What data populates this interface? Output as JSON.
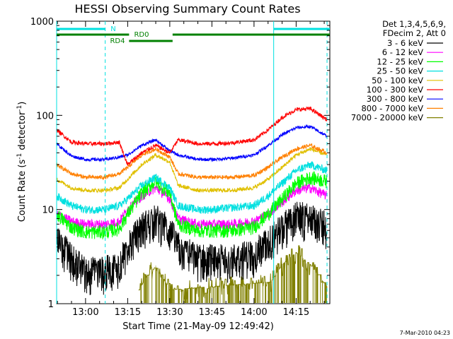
{
  "chart_data": {
    "type": "line",
    "title": "HESSI Observing Summary Count Rates",
    "xlabel": "Start Time (21-May-09 12:49:42)",
    "ylabel_main": "Count Rate (s",
    "ylabel_sup1": "-1",
    "ylabel_mid": " detector",
    "ylabel_sup2": "-1",
    "ylabel_end": ")",
    "y_scale": "log",
    "ylim": [
      1,
      1000
    ],
    "xlim": [
      "12:49:42",
      "14:27:00"
    ],
    "x_ticks": [
      "13:00",
      "13:15",
      "13:30",
      "13:45",
      "14:00",
      "14:15"
    ],
    "y_ticks": [
      "1",
      "10",
      "100",
      "1000"
    ],
    "grid": false,
    "legend_position": "right",
    "legend_header": [
      "Det 1,3,4,5,6,9,",
      "FDecim 2, Att 0"
    ],
    "footer_text": "7-Mar-2010 04:23",
    "flags": [
      {
        "label": "N",
        "color": "#00e0e0"
      },
      {
        "label": "RD0",
        "color": "#008000"
      },
      {
        "label": "RD4",
        "color": "#008000"
      }
    ],
    "night_boundaries": [
      "12:49:42",
      "13:07:00",
      "14:07:00",
      "14:26:00"
    ],
    "series": [
      {
        "name": "3 - 6 keV",
        "color": "#000000",
        "x": [
          "12:49:42",
          "12:55",
          "13:00",
          "13:07",
          "13:12",
          "13:15",
          "13:20",
          "13:25",
          "13:30",
          "13:33",
          "13:40",
          "13:45",
          "13:52",
          "14:00",
          "14:05",
          "14:10",
          "14:15",
          "14:20",
          "14:26"
        ],
        "values": [
          5,
          3,
          2.2,
          2.2,
          2.6,
          4,
          6.5,
          8,
          6,
          4,
          3,
          3,
          3,
          3.4,
          4.5,
          6.5,
          8.5,
          8,
          6.5
        ]
      },
      {
        "name": "6 - 12 keV",
        "color": "#ff00ff",
        "x": [
          "12:49:42",
          "12:55",
          "13:00",
          "13:07",
          "13:12",
          "13:15",
          "13:20",
          "13:25",
          "13:30",
          "13:33",
          "13:40",
          "13:45",
          "13:52",
          "14:00",
          "14:05",
          "14:10",
          "14:15",
          "14:20",
          "14:26"
        ],
        "values": [
          9,
          7.5,
          7,
          7,
          7.5,
          10,
          14,
          17,
          13,
          8,
          7,
          7,
          7,
          7.5,
          9,
          12,
          16,
          17,
          14
        ]
      },
      {
        "name": "12 - 25 keV",
        "color": "#00ff00",
        "x": [
          "12:49:42",
          "12:55",
          "13:00",
          "13:07",
          "13:12",
          "13:15",
          "13:20",
          "13:25",
          "13:30",
          "13:33",
          "13:40",
          "13:45",
          "13:52",
          "14:00",
          "14:05",
          "14:10",
          "14:15",
          "14:20",
          "14:26"
        ],
        "values": [
          9,
          6.5,
          5.8,
          5.8,
          6.3,
          9,
          15,
          20,
          15,
          7,
          6,
          6,
          6,
          6.5,
          9,
          13,
          19,
          22,
          20
        ]
      },
      {
        "name": "25 - 50 keV",
        "color": "#00e0e0",
        "x": [
          "12:49:42",
          "12:55",
          "13:00",
          "13:07",
          "13:12",
          "13:15",
          "13:20",
          "13:25",
          "13:30",
          "13:33",
          "13:40",
          "13:45",
          "13:52",
          "14:00",
          "14:05",
          "14:10",
          "14:15",
          "14:20",
          "14:26"
        ],
        "values": [
          14,
          11,
          10,
          10,
          11,
          13,
          18,
          22,
          17,
          11,
          10,
          10,
          10.5,
          11,
          14,
          19,
          26,
          30,
          26
        ]
      },
      {
        "name": "50 - 100 keV",
        "color": "#e0c000",
        "x": [
          "12:49:42",
          "12:55",
          "13:00",
          "13:07",
          "13:12",
          "13:15",
          "13:20",
          "13:25",
          "13:30",
          "13:33",
          "13:40",
          "13:45",
          "13:52",
          "14:00",
          "14:05",
          "14:10",
          "14:15",
          "14:20",
          "14:26"
        ],
        "values": [
          21,
          17,
          16,
          16,
          17,
          21,
          30,
          38,
          32,
          18,
          16,
          16,
          16,
          17,
          21,
          28,
          38,
          44,
          38
        ]
      },
      {
        "name": "100 - 300 keV",
        "color": "#ff0000",
        "x": [
          "12:49:42",
          "12:55",
          "13:00",
          "13:07",
          "13:12",
          "13:15",
          "13:20",
          "13:25",
          "13:30",
          "13:33",
          "13:40",
          "13:45",
          "13:52",
          "14:00",
          "14:05",
          "14:10",
          "14:15",
          "14:20",
          "14:26"
        ],
        "values": [
          70,
          52,
          50,
          50,
          52,
          30,
          40,
          48,
          40,
          55,
          50,
          50,
          51,
          55,
          70,
          95,
          115,
          118,
          90
        ]
      },
      {
        "name": "300 - 800 keV",
        "color": "#0000ff",
        "x": [
          "12:49:42",
          "12:55",
          "13:00",
          "13:07",
          "13:12",
          "13:15",
          "13:20",
          "13:25",
          "13:30",
          "13:33",
          "13:40",
          "13:45",
          "13:52",
          "14:00",
          "14:05",
          "14:10",
          "14:15",
          "14:20",
          "14:26"
        ],
        "values": [
          50,
          37,
          34,
          34,
          36,
          38,
          48,
          55,
          42,
          38,
          34,
          34,
          35,
          38,
          48,
          62,
          74,
          76,
          60
        ]
      },
      {
        "name": "800 - 7000 keV",
        "color": "#ff8000",
        "x": [
          "12:49:42",
          "12:55",
          "13:00",
          "13:07",
          "13:12",
          "13:15",
          "13:20",
          "13:25",
          "13:30",
          "13:33",
          "13:40",
          "13:45",
          "13:52",
          "14:00",
          "14:05",
          "14:10",
          "14:15",
          "14:20",
          "14:26"
        ],
        "values": [
          30,
          24,
          22,
          22,
          24,
          28,
          38,
          44,
          36,
          24,
          22,
          22,
          22,
          23,
          28,
          36,
          44,
          48,
          40
        ]
      },
      {
        "name": "7000 - 20000 keV",
        "color": "#808000",
        "x": [
          "12:49:42",
          "13:07",
          "13:19",
          "13:22",
          "13:25",
          "13:27",
          "13:30",
          "14:06",
          "14:10",
          "14:15",
          "14:20",
          "14:26"
        ],
        "values": [
          null,
          null,
          1.4,
          2.0,
          2.5,
          2.0,
          1.4,
          1.7,
          2.6,
          3.5,
          2.6,
          1.5
        ]
      }
    ]
  }
}
